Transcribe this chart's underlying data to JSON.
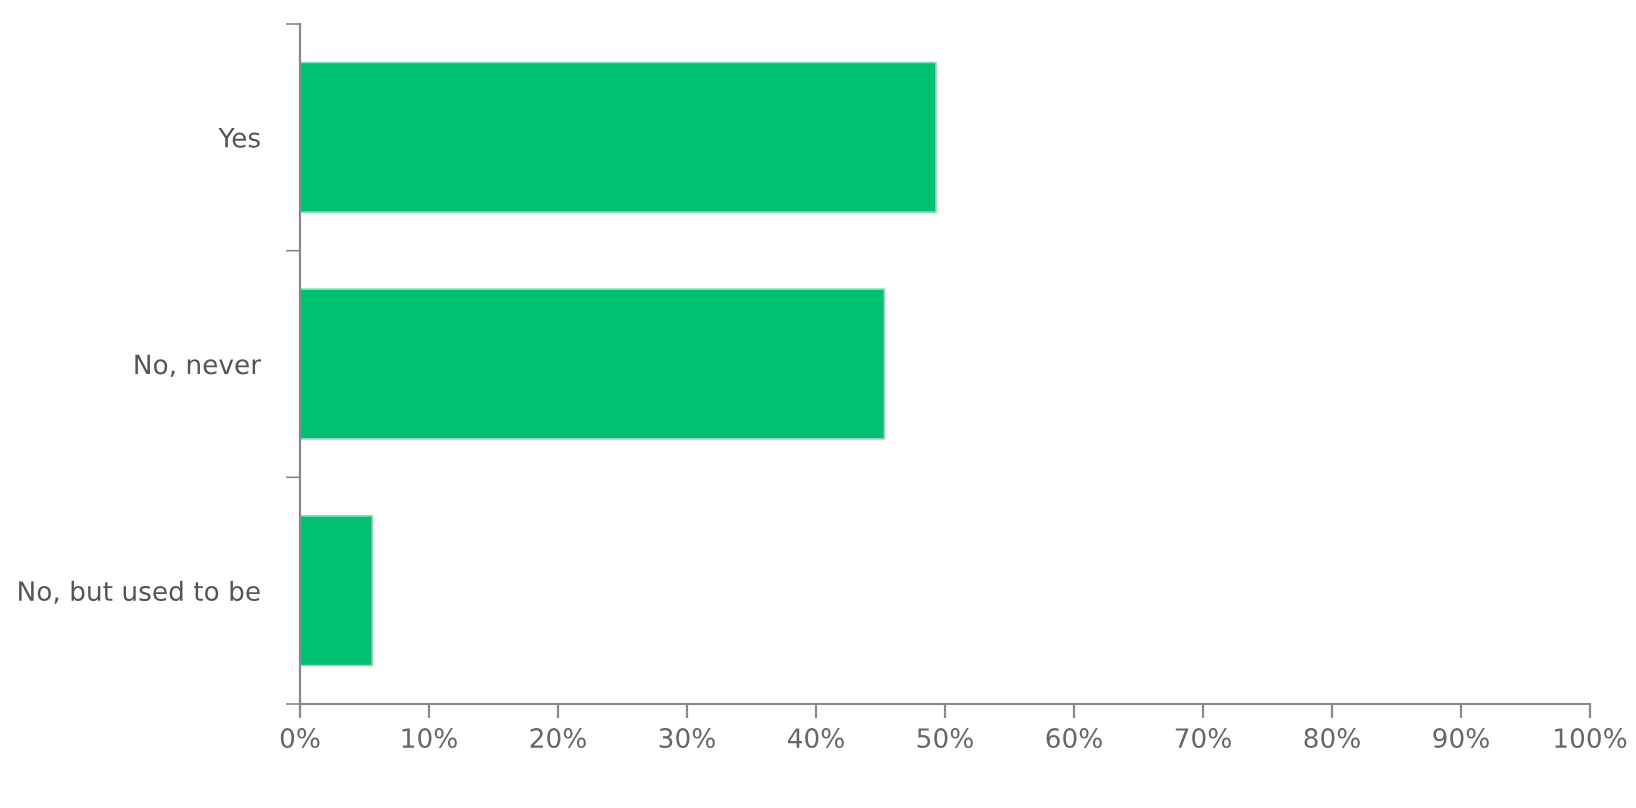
{
  "chart_data": {
    "type": "bar",
    "orientation": "horizontal",
    "categories": [
      "Yes",
      "No, never",
      "No, but used to be"
    ],
    "values": [
      49.3,
      45.3,
      5.6
    ],
    "color": "#00bf6f",
    "xlim": [
      0,
      100
    ],
    "xticks": [
      {
        "value": 0,
        "label": "0%"
      },
      {
        "value": 10,
        "label": "10%"
      },
      {
        "value": 20,
        "label": "20%"
      },
      {
        "value": 30,
        "label": "30%"
      },
      {
        "value": 40,
        "label": "40%"
      },
      {
        "value": 50,
        "label": "50%"
      },
      {
        "value": 60,
        "label": "60%"
      },
      {
        "value": 70,
        "label": "70%"
      },
      {
        "value": 80,
        "label": "80%"
      },
      {
        "value": 90,
        "label": "90%"
      },
      {
        "value": 100,
        "label": "100%"
      }
    ],
    "grid": false,
    "legend": false
  }
}
